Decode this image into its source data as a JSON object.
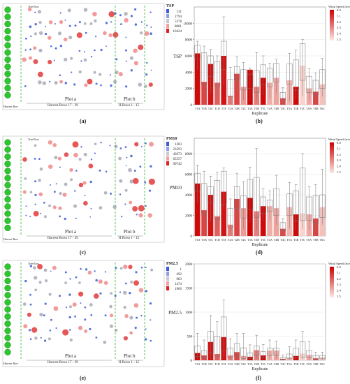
{
  "colors": {
    "bar_dark": "#cc0000",
    "bar_light": "#f8d9d3",
    "plot_green_dash": "#2fb52f",
    "bush_green": "#2ec62e",
    "dot_blue": "#3b5bd6",
    "dot_grey": "#a9a9b8",
    "dot_red": "#e23a3a"
  },
  "map_labels": {
    "tree_row": "Tree Row",
    "harvest_row": "Harvest Row",
    "plot_a": "Plot a",
    "plot_b": "Plot b",
    "harvest_rows_a": "Harvest Rows 17 - 39",
    "harvest_rows_b": "H Rows 1 - 15"
  },
  "panel_labels": [
    "(a)",
    "(b)",
    "(c)",
    "(d)",
    "(e)",
    "(f)"
  ],
  "map_legends": [
    {
      "title": "TSP",
      "values": [
        "131",
        "2794",
        "5378",
        "8081",
        "10424"
      ]
    },
    {
      "title": "PM10",
      "values": [
        "1203",
        "23593",
        "43973",
        "65357",
        "90742"
      ]
    },
    {
      "title": "PM2.5",
      "values": [
        "1",
        "492",
        "983",
        "1474",
        "1960"
      ]
    }
  ],
  "wind_legend": {
    "title": "Wind Speed (m/s)",
    "values": [
      "6.0",
      "5.1",
      "4.2",
      "3.3",
      "2.4",
      "1.5"
    ]
  },
  "chart_data": [
    {
      "type": "bar",
      "ylabel": "TSP",
      "xlabel": "Replicate",
      "ylim": [
        0,
        12000
      ],
      "yticks": [
        "0",
        "2000",
        "4000",
        "6000",
        "8000",
        "10000"
      ],
      "categories": [
        "T1A",
        "T1B",
        "T1C",
        "T1D",
        "T1E",
        "T2A",
        "T2B",
        "T2C",
        "T3A",
        "T3B",
        "T3C",
        "T4A",
        "T4B",
        "T4C",
        "T5A",
        "T5B",
        "T5C",
        "T6A",
        "T6B",
        "T6C"
      ],
      "values": [
        6300,
        2800,
        5000,
        2700,
        6000,
        1100,
        3800,
        2200,
        4300,
        2200,
        3300,
        2700,
        3300,
        800,
        3000,
        2200,
        4800,
        2000,
        1600,
        2500
      ],
      "box_q1": [
        5600,
        2500,
        3500,
        2200,
        4300,
        1000,
        3000,
        1800,
        2000,
        1500,
        2500,
        2200,
        2800,
        500,
        2500,
        1800,
        3000,
        1500,
        1200,
        2000
      ],
      "box_q3": [
        7300,
        6400,
        6000,
        5300,
        7800,
        3100,
        4700,
        4300,
        3700,
        4200,
        4900,
        4500,
        5100,
        1500,
        5000,
        5500,
        7500,
        3500,
        3000,
        4300
      ],
      "whisker_low": [
        4300,
        1200,
        1400,
        900,
        2400,
        100,
        1500,
        600,
        400,
        500,
        1200,
        800,
        1400,
        100,
        400,
        600,
        1000,
        500,
        300,
        1000
      ],
      "whisker_high": [
        7800,
        7200,
        6800,
        6000,
        10800,
        4600,
        5900,
        5200,
        4500,
        6400,
        6000,
        5100,
        5600,
        2100,
        6300,
        6700,
        8000,
        4400,
        3900,
        5700
      ],
      "wind_speed": [
        5.8,
        4.6,
        5.6,
        4.0,
        5.6,
        3.4,
        4.6,
        2.8,
        5.9,
        3.4,
        5.8,
        2.4,
        2.6,
        4.5,
        2.2,
        5.8,
        1.6,
        2.5,
        4.6,
        2.0
      ]
    },
    {
      "type": "bar",
      "ylabel": "PM10",
      "xlabel": "Replicate",
      "ylim": [
        0,
        9500
      ],
      "yticks": [
        "0",
        "2000",
        "4000",
        "6000",
        "8000"
      ],
      "categories": [
        "T1A",
        "T1B",
        "T1C",
        "T1D",
        "T1E",
        "T2A",
        "T2B",
        "T2C",
        "T3A",
        "T3B",
        "T3C",
        "T4A",
        "T4B",
        "T4C",
        "T5A",
        "T5B",
        "T5C",
        "T6A",
        "T6B",
        "T6C"
      ],
      "values": [
        5100,
        2500,
        4000,
        1900,
        4300,
        1100,
        3600,
        2700,
        3700,
        2400,
        2900,
        2900,
        2700,
        700,
        2800,
        2100,
        2200,
        2100,
        1700,
        2800
      ],
      "box_q1": [
        4400,
        2200,
        3200,
        1600,
        3100,
        800,
        2700,
        1700,
        2600,
        1800,
        2200,
        2400,
        2000,
        500,
        2000,
        1500,
        1500,
        1500,
        1200,
        1800
      ],
      "box_q3": [
        6100,
        5100,
        4800,
        5400,
        6300,
        2700,
        4800,
        3900,
        5500,
        5700,
        3800,
        3500,
        4600,
        1300,
        4100,
        4400,
        6600,
        3800,
        3900,
        4000
      ],
      "whisker_low": [
        3200,
        1000,
        1400,
        800,
        2600,
        200,
        1200,
        700,
        1300,
        600,
        1500,
        1500,
        1100,
        100,
        700,
        600,
        700,
        600,
        500,
        1100
      ],
      "whisker_high": [
        6900,
        6300,
        5800,
        6200,
        6600,
        3600,
        6100,
        5300,
        6700,
        8500,
        4600,
        4400,
        5900,
        1700,
        5200,
        5000,
        8000,
        4800,
        5000,
        6500
      ],
      "wind_speed": [
        5.8,
        4.6,
        5.6,
        4.0,
        5.6,
        3.4,
        4.6,
        2.8,
        5.9,
        3.4,
        5.8,
        2.4,
        2.6,
        4.5,
        2.2,
        5.8,
        1.6,
        2.5,
        4.6,
        2.0
      ]
    },
    {
      "type": "bar",
      "ylabel": "PM2.5",
      "xlabel": "Replicate",
      "ylim": [
        0,
        2000
      ],
      "yticks": [
        "0",
        "500",
        "1000",
        "1500",
        "2000"
      ],
      "categories": [
        "T1A",
        "T1B",
        "T1C",
        "T1D",
        "T1E",
        "T2A",
        "T2B",
        "T2C",
        "T3A",
        "T3B",
        "T3C",
        "T4A",
        "T4B",
        "T4C",
        "T5A",
        "T5B",
        "T5C",
        "T6A",
        "T6B",
        "T6C"
      ],
      "values": [
        150,
        100,
        380,
        130,
        480,
        100,
        170,
        90,
        70,
        210,
        100,
        200,
        200,
        30,
        60,
        90,
        140,
        110,
        40,
        60
      ],
      "box_q1": [
        80,
        50,
        150,
        80,
        200,
        50,
        80,
        40,
        30,
        100,
        50,
        100,
        100,
        20,
        30,
        50,
        60,
        50,
        20,
        30
      ],
      "box_q3": [
        300,
        200,
        600,
        500,
        900,
        250,
        350,
        260,
        150,
        300,
        180,
        250,
        250,
        60,
        130,
        250,
        380,
        200,
        100,
        100
      ],
      "whisker_low": [
        20,
        10,
        30,
        20,
        60,
        10,
        20,
        10,
        5,
        30,
        10,
        30,
        30,
        5,
        10,
        10,
        20,
        10,
        5,
        10
      ],
      "whisker_high": [
        560,
        420,
        930,
        800,
        1250,
        440,
        560,
        560,
        320,
        520,
        330,
        420,
        400,
        110,
        280,
        420,
        600,
        390,
        170,
        170
      ],
      "wind_speed": [
        5.8,
        4.6,
        5.6,
        4.0,
        5.6,
        3.4,
        4.6,
        2.8,
        5.9,
        3.4,
        5.8,
        2.4,
        2.6,
        4.5,
        2.2,
        5.8,
        1.6,
        2.5,
        4.6,
        2.0
      ]
    }
  ]
}
